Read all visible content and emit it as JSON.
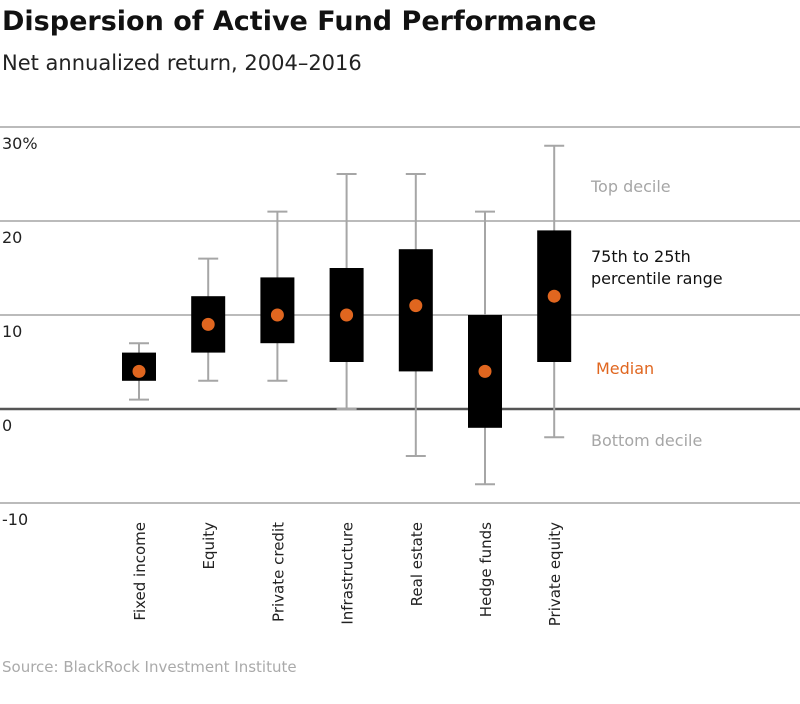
{
  "chart_data": {
    "type": "box",
    "title": "Dispersion of Active Fund Performance",
    "subtitle": "Net annualized return, 2004–2016",
    "source": "Source: BlackRock Investment Institute",
    "categories": [
      "Fixed income",
      "Equity",
      "Private credit",
      "Infrastructure",
      "Real estate",
      "Hedge funds",
      "Private equity"
    ],
    "top_decile": {
      "name": "Top decile",
      "color": "#a6a6a6",
      "values": [
        7,
        16,
        21,
        25,
        25,
        21,
        28
      ]
    },
    "upper_quartile": {
      "color": "#000000",
      "values": [
        6,
        12,
        14,
        15,
        17,
        10,
        19
      ]
    },
    "lower_quartile": {
      "color": "#000000",
      "values": [
        3,
        6,
        7,
        5,
        4,
        -2,
        5
      ]
    },
    "range_label_lines": [
      "75th to 25th",
      "percentile range"
    ],
    "median": {
      "name": "Median",
      "color": "#e0661f",
      "values": [
        4,
        9,
        10,
        10,
        11,
        4,
        12
      ]
    },
    "bottom_decile": {
      "name": "Bottom decile",
      "color": "#a6a6a6",
      "values": [
        1,
        3,
        3,
        0,
        -5,
        -8,
        -3
      ]
    },
    "ylim": [
      -10,
      30
    ],
    "yticks": [
      -10,
      0,
      10,
      20,
      {
        "value": 30,
        "label": "30%"
      }
    ],
    "grid": true
  }
}
